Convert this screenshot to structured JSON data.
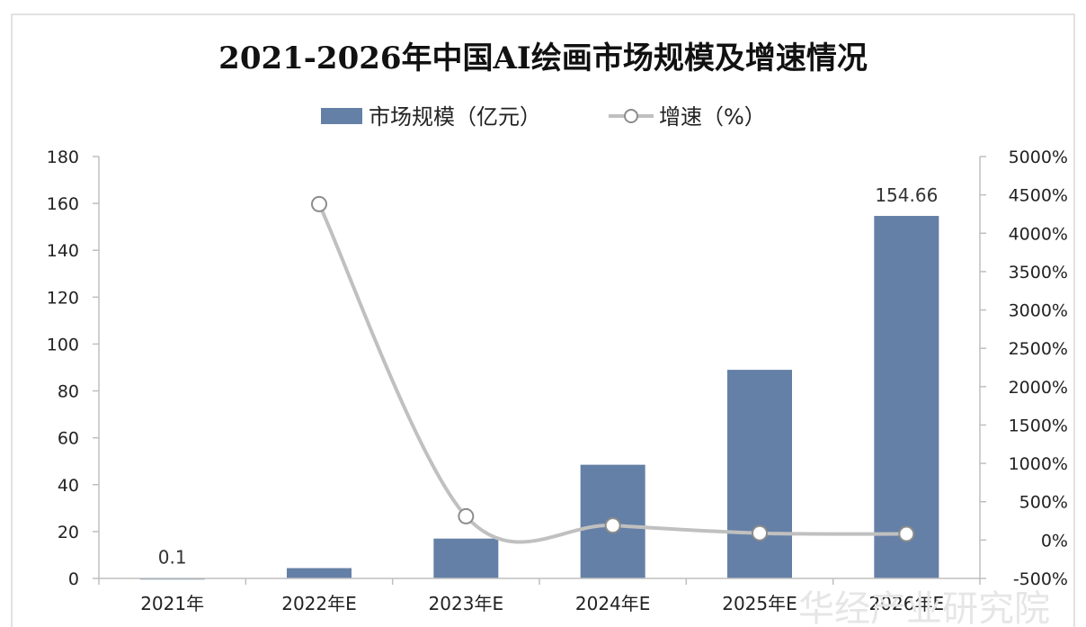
{
  "chart_data": {
    "type": "bar",
    "title": "2021-2026年中国AI绘画市场规模及增速情况",
    "categories": [
      "2021年",
      "2022年E",
      "2023年E",
      "2024年E",
      "2025年E",
      "2026年E"
    ],
    "series": [
      {
        "name": "市场规模（亿元）",
        "type": "bar",
        "axis": "left",
        "values": [
          0.1,
          4.4,
          17.0,
          48.5,
          89.0,
          154.66
        ],
        "color": "#6580a6"
      },
      {
        "name": "增速（%）",
        "type": "line",
        "axis": "right",
        "smooth": true,
        "marker": "hollow-circle",
        "values": [
          null,
          4380,
          310,
          190,
          90,
          80
        ],
        "color": "#c0c0c0"
      }
    ],
    "data_labels": [
      {
        "category": "2021年",
        "text": "0.1"
      },
      {
        "category": "2026年E",
        "text": "154.66"
      }
    ],
    "y_left": {
      "ylim": [
        0,
        180
      ],
      "ticks": [
        "0",
        "20",
        "40",
        "60",
        "80",
        "100",
        "120",
        "140",
        "160",
        "180"
      ]
    },
    "y_right": {
      "ylim": [
        -500,
        5000
      ],
      "ticks": [
        "-500%",
        "0%",
        "500%",
        "1000%",
        "1500%",
        "2000%",
        "2500%",
        "3000%",
        "3500%",
        "4000%",
        "4500%",
        "5000%"
      ]
    },
    "grid": false,
    "legend": "top-center"
  },
  "watermark": "华经产业研究院"
}
